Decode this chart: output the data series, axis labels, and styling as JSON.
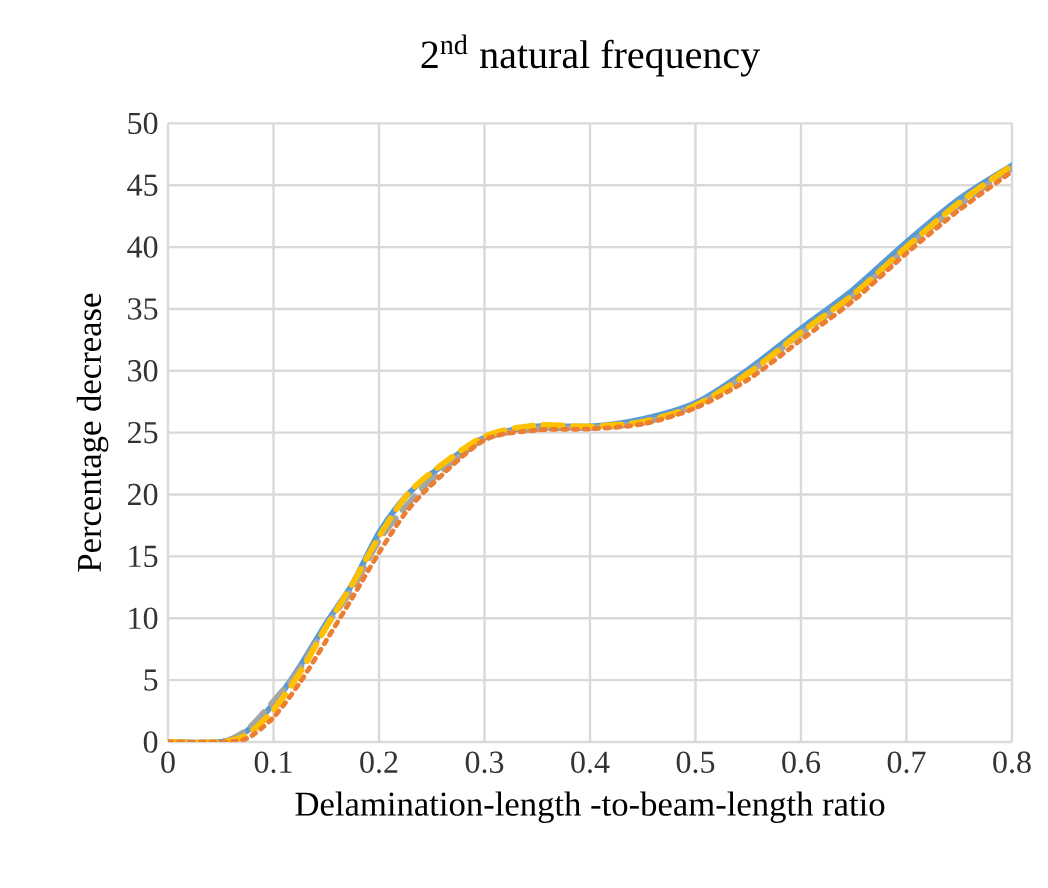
{
  "chart_data": {
    "type": "line",
    "title": "2$^{nd}$ natural frequency",
    "xlabel": "Delamination-length -to-beam-length ratio",
    "ylabel": "Percentage decrease",
    "x": [
      0,
      0.05,
      0.075,
      0.1,
      0.125,
      0.15,
      0.175,
      0.2,
      0.225,
      0.25,
      0.3,
      0.35,
      0.4,
      0.45,
      0.5,
      0.55,
      0.6,
      0.65,
      0.7,
      0.75,
      0.8
    ],
    "series": [
      {
        "color": "#5b9bd5",
        "line_style": "solid",
        "values": [
          0,
          0,
          0.9,
          3.1,
          6.1,
          9.6,
          12.8,
          16.9,
          19.8,
          21.7,
          24.6,
          25.5,
          25.5,
          26.1,
          27.4,
          30.1,
          33.4,
          36.6,
          40.4,
          43.9,
          46.6
        ]
      },
      {
        "color": "#a5a5a5",
        "line_style": "dashed",
        "values": [
          0,
          0,
          1.0,
          3.3,
          5.9,
          9.4,
          12.4,
          16.3,
          19.0,
          21.2,
          24.5,
          25.3,
          25.4,
          25.8,
          27.2,
          29.8,
          33.0,
          36.1,
          39.9,
          43.4,
          46.4
        ]
      },
      {
        "color": "#ffc000",
        "line_style": "dashed",
        "values": [
          0,
          0,
          0.6,
          2.6,
          5.6,
          9.3,
          12.8,
          16.6,
          19.8,
          21.8,
          24.7,
          25.6,
          25.5,
          25.9,
          27.2,
          29.8,
          33.1,
          36.2,
          40.0,
          43.6,
          46.6
        ]
      },
      {
        "color": "#ed7d31",
        "line_style": "dotted",
        "values": [
          0,
          0,
          0.3,
          2.0,
          4.8,
          8.2,
          11.7,
          15.3,
          18.5,
          20.8,
          24.4,
          25.2,
          25.3,
          25.7,
          27.0,
          29.3,
          32.5,
          35.7,
          39.5,
          43.0,
          46.1
        ]
      }
    ],
    "xlim": [
      0,
      0.8
    ],
    "xticks": [
      0,
      0.1,
      0.2,
      0.3,
      0.4,
      0.5,
      0.6,
      0.7,
      0.8
    ],
    "ylim": [
      0,
      50
    ],
    "yticks": [
      0,
      5,
      10,
      15,
      20,
      25,
      30,
      35,
      40,
      45,
      50
    ],
    "grid": true,
    "marker": "none"
  }
}
